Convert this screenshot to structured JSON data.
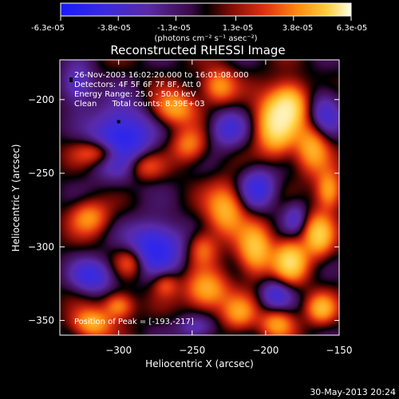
{
  "colorbar": {
    "tick_labels": [
      "-6.3e-05",
      "-3.8e-05",
      "-1.3e-05",
      "1.3e-05",
      "3.8e-05",
      "6.3e-05"
    ],
    "unit_label": "(photons cm⁻² s⁻¹ asec⁻²)",
    "range": [
      -6.3e-05,
      6.3e-05
    ]
  },
  "chart_data": {
    "type": "heatmap",
    "title": "Reconstructed RHESSI Image",
    "xlabel": "Heliocentric X (arcsec)",
    "ylabel": "Heliocentric Y (arcsec)",
    "xlim": [
      -340,
      -150
    ],
    "ylim": [
      -360,
      -173
    ],
    "x_ticks": [
      -300,
      -250,
      -200,
      -150
    ],
    "y_ticks": [
      -350,
      -300,
      -250,
      -200
    ],
    "x_tick_labels": [
      "−300",
      "−250",
      "−200",
      "−150"
    ],
    "y_tick_labels": [
      "−350",
      "−300",
      "−250",
      "−200"
    ],
    "annotations": [
      "26-Nov-2003 16:02:20.000 to 16:01:08.000",
      "Detectors: 4F 5F 6F 7F 8F, Att 0",
      "Energy Range: 25.0 - 50.0 keV",
      "Clean      Total counts: 8.39E+03"
    ],
    "peak_label": "Position of Peak = [-193,-217]",
    "peak": [
      -193,
      -217
    ],
    "marker": [
      -300,
      -215
    ],
    "blobs": [
      {
        "x": -193,
        "y": -217,
        "a": 1.0,
        "sx": 9,
        "sy": 14
      },
      {
        "x": -183,
        "y": -203,
        "a": 0.8,
        "sx": 8,
        "sy": 10
      },
      {
        "x": -168,
        "y": -232,
        "a": 0.7,
        "sx": 8,
        "sy": 12
      },
      {
        "x": -262,
        "y": -206,
        "a": 0.65,
        "sx": 10,
        "sy": 8
      },
      {
        "x": -232,
        "y": -191,
        "a": 0.6,
        "sx": 8,
        "sy": 8
      },
      {
        "x": -312,
        "y": -236,
        "a": 0.6,
        "sx": 12,
        "sy": 6
      },
      {
        "x": -320,
        "y": -280,
        "a": 0.55,
        "sx": 9,
        "sy": 8
      },
      {
        "x": -283,
        "y": -245,
        "a": 0.5,
        "sx": 9,
        "sy": 7
      },
      {
        "x": -318,
        "y": -352,
        "a": 0.7,
        "sx": 9,
        "sy": 7
      },
      {
        "x": -300,
        "y": -340,
        "a": 0.6,
        "sx": 7,
        "sy": 6
      },
      {
        "x": -292,
        "y": -310,
        "a": 0.45,
        "sx": 7,
        "sy": 7
      },
      {
        "x": -227,
        "y": -275,
        "a": 0.7,
        "sx": 9,
        "sy": 12
      },
      {
        "x": -207,
        "y": -302,
        "a": 0.8,
        "sx": 8,
        "sy": 12
      },
      {
        "x": -183,
        "y": -310,
        "a": 0.9,
        "sx": 8,
        "sy": 10
      },
      {
        "x": -164,
        "y": -292,
        "a": 0.8,
        "sx": 7,
        "sy": 10
      },
      {
        "x": -157,
        "y": -262,
        "a": 0.7,
        "sx": 6,
        "sy": 9
      },
      {
        "x": -240,
        "y": -330,
        "a": 0.7,
        "sx": 10,
        "sy": 9
      },
      {
        "x": -218,
        "y": -345,
        "a": 0.55,
        "sx": 8,
        "sy": 8
      },
      {
        "x": -192,
        "y": -352,
        "a": 0.6,
        "sx": 8,
        "sy": 7
      },
      {
        "x": -162,
        "y": -342,
        "a": 0.65,
        "sx": 7,
        "sy": 7
      },
      {
        "x": -252,
        "y": -231,
        "a": 0.5,
        "sx": 8,
        "sy": 8
      },
      {
        "x": -243,
        "y": -301,
        "a": 0.45,
        "sx": 7,
        "sy": 8
      },
      {
        "x": -268,
        "y": -325,
        "a": 0.4,
        "sx": 6,
        "sy": 6
      },
      {
        "x": -298,
        "y": -228,
        "a": -0.9,
        "sx": 14,
        "sy": 16
      },
      {
        "x": -275,
        "y": -300,
        "a": -0.8,
        "sx": 13,
        "sy": 12
      },
      {
        "x": -318,
        "y": -320,
        "a": -0.6,
        "sx": 10,
        "sy": 8
      },
      {
        "x": -205,
        "y": -260,
        "a": -0.6,
        "sx": 9,
        "sy": 10
      },
      {
        "x": -226,
        "y": -220,
        "a": -0.5,
        "sx": 9,
        "sy": 9
      },
      {
        "x": -193,
        "y": -332,
        "a": -0.5,
        "sx": 8,
        "sy": 8
      },
      {
        "x": -160,
        "y": -210,
        "a": -0.5,
        "sx": 8,
        "sy": 12
      },
      {
        "x": -328,
        "y": -190,
        "a": -0.5,
        "sx": 8,
        "sy": 10
      },
      {
        "x": -247,
        "y": -355,
        "a": -0.4,
        "sx": 9,
        "sy": 6
      },
      {
        "x": -180,
        "y": -280,
        "a": -0.4,
        "sx": 6,
        "sy": 8
      }
    ]
  },
  "footer": {
    "timestamp": "30-May-2013 20:24"
  }
}
